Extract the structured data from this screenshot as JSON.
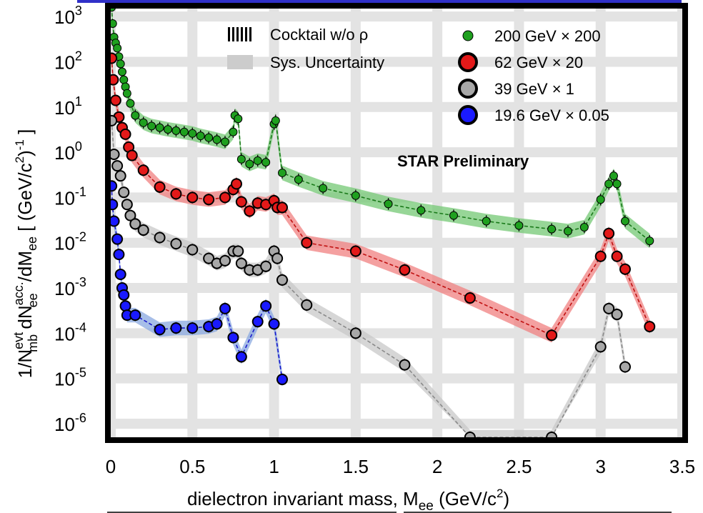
{
  "chart_data": {
    "type": "scatter",
    "xlabel": "dielectron invariant mass, M",
    "xlabel_sub": "ee",
    "xlabel_unit": "(GeV/c",
    "xlabel_unit_sup": "2",
    "xlabel_unit_end": ")",
    "ylabel": {
      "p1": "1/N",
      "p1_sup": "evt",
      "p1_sub": "mb",
      "p2": " dN",
      "p2_sup": "acc.",
      "p2_sub": "ee",
      "p3": "/dM",
      "p3_sub": "ee",
      "p4": " [ (GeV/c",
      "p4_sup": "2",
      "p4_end": ")",
      "p4_sup2": "-1",
      "p4_close": " ]"
    },
    "annotation": "STAR Preliminary",
    "xlim": [
      0,
      3.5
    ],
    "ylim": [
      5e-07,
      1500
    ],
    "y_scale": "log",
    "x_ticks": [
      0,
      0.5,
      1,
      1.5,
      2,
      2.5,
      3,
      3.5
    ],
    "x_tick_labels": [
      "0",
      "0.5",
      "1",
      "1.5",
      "2",
      "2.5",
      "3",
      "3.5"
    ],
    "y_ticks": [
      {
        "value": 1000,
        "base": "10",
        "exp": "3"
      },
      {
        "value": 100,
        "base": "10",
        "exp": "2"
      },
      {
        "value": 10,
        "base": "10",
        "exp": "1"
      },
      {
        "value": 1,
        "base": "10",
        "exp": "0"
      },
      {
        "value": 0.1,
        "base": "10",
        "exp": "-1"
      },
      {
        "value": 0.01,
        "base": "10",
        "exp": "-2"
      },
      {
        "value": 0.001,
        "base": "10",
        "exp": "-3"
      },
      {
        "value": 0.0001,
        "base": "10",
        "exp": "-4"
      },
      {
        "value": 1e-05,
        "base": "10",
        "exp": "-5"
      },
      {
        "value": 1e-06,
        "base": "10",
        "exp": "-6"
      }
    ],
    "grid": true,
    "legend_position": "top",
    "legend": {
      "cocktail": "Cocktail w/o ρ",
      "sys": "Sys. Uncertainty"
    },
    "series": [
      {
        "name": "200 GeV × 200",
        "color": "#1fa01f",
        "band_color": "#74c874",
        "line_color": "#1a7a1a",
        "marker": "small",
        "points": [
          [
            0.005,
            1600
          ],
          [
            0.012,
            700
          ],
          [
            0.02,
            350
          ],
          [
            0.03,
            260
          ],
          [
            0.04,
            200
          ],
          [
            0.05,
            130
          ],
          [
            0.06,
            90
          ],
          [
            0.07,
            60
          ],
          [
            0.08,
            40
          ],
          [
            0.09,
            28
          ],
          [
            0.1,
            20
          ],
          [
            0.12,
            12
          ],
          [
            0.15,
            6.5
          ],
          [
            0.2,
            4.5
          ],
          [
            0.25,
            3.8
          ],
          [
            0.3,
            3.5
          ],
          [
            0.35,
            3.2
          ],
          [
            0.4,
            3.0
          ],
          [
            0.45,
            2.8
          ],
          [
            0.5,
            2.6
          ],
          [
            0.55,
            2.3
          ],
          [
            0.6,
            2.1
          ],
          [
            0.65,
            1.9
          ],
          [
            0.7,
            1.7
          ],
          [
            0.75,
            2.8
          ],
          [
            0.76,
            6.5
          ],
          [
            0.78,
            5.5
          ],
          [
            0.8,
            0.7
          ],
          [
            0.85,
            0.55
          ],
          [
            0.9,
            0.65
          ],
          [
            0.95,
            0.6
          ],
          [
            1.0,
            4.2
          ],
          [
            1.01,
            5.0
          ],
          [
            1.05,
            0.35
          ],
          [
            1.15,
            0.25
          ],
          [
            1.3,
            0.16
          ],
          [
            1.5,
            0.11
          ],
          [
            1.7,
            0.072
          ],
          [
            1.9,
            0.052
          ],
          [
            2.1,
            0.04
          ],
          [
            2.3,
            0.03
          ],
          [
            2.5,
            0.024
          ],
          [
            2.7,
            0.02
          ],
          [
            2.8,
            0.018
          ],
          [
            2.9,
            0.022
          ],
          [
            3.0,
            0.09
          ],
          [
            3.05,
            0.2
          ],
          [
            3.08,
            0.3
          ],
          [
            3.1,
            0.2
          ],
          [
            3.15,
            0.03
          ],
          [
            3.3,
            0.011
          ]
        ]
      },
      {
        "name": "62 GeV × 20",
        "color": "#e31919",
        "band_color": "#f08080",
        "line_color": "#c01010",
        "marker": "large",
        "points": [
          [
            0.005,
            120
          ],
          [
            0.015,
            40
          ],
          [
            0.03,
            14
          ],
          [
            0.05,
            6
          ],
          [
            0.07,
            3.5
          ],
          [
            0.09,
            2.5
          ],
          [
            0.11,
            1.3
          ],
          [
            0.13,
            0.85
          ],
          [
            0.2,
            0.4
          ],
          [
            0.3,
            0.17
          ],
          [
            0.4,
            0.12
          ],
          [
            0.5,
            0.1
          ],
          [
            0.6,
            0.09
          ],
          [
            0.7,
            0.1
          ],
          [
            0.75,
            0.15
          ],
          [
            0.77,
            0.2
          ],
          [
            0.8,
            0.08
          ],
          [
            0.85,
            0.05
          ],
          [
            0.9,
            0.075
          ],
          [
            0.95,
            0.07
          ],
          [
            1.0,
            0.085
          ],
          [
            1.02,
            0.06
          ],
          [
            1.05,
            0.06
          ],
          [
            1.2,
            0.01
          ],
          [
            1.5,
            0.0065
          ],
          [
            1.8,
            0.0025
          ],
          [
            2.2,
            0.0006
          ],
          [
            2.7,
            9e-05
          ],
          [
            3.0,
            0.005
          ],
          [
            3.05,
            0.016
          ],
          [
            3.1,
            0.005
          ],
          [
            3.15,
            0.0026
          ],
          [
            3.3,
            0.00014
          ]
        ]
      },
      {
        "name": "39 GeV × 1",
        "color": "#a8a8a8",
        "band_color": "#c8c8c8",
        "line_color": "#8a8a8a",
        "marker": "large",
        "points": [
          [
            0.005,
            5.0
          ],
          [
            0.02,
            0.9
          ],
          [
            0.04,
            0.5
          ],
          [
            0.06,
            0.3
          ],
          [
            0.08,
            0.13
          ],
          [
            0.1,
            0.07
          ],
          [
            0.12,
            0.04
          ],
          [
            0.15,
            0.026
          ],
          [
            0.2,
            0.019
          ],
          [
            0.3,
            0.013
          ],
          [
            0.4,
            0.0095
          ],
          [
            0.5,
            0.007
          ],
          [
            0.6,
            0.0045
          ],
          [
            0.65,
            0.0035
          ],
          [
            0.7,
            0.004
          ],
          [
            0.75,
            0.0065
          ],
          [
            0.78,
            0.0065
          ],
          [
            0.8,
            0.0035
          ],
          [
            0.85,
            0.0025
          ],
          [
            0.9,
            0.0025
          ],
          [
            0.95,
            0.003
          ],
          [
            1.0,
            0.0065
          ],
          [
            1.02,
            0.0045
          ],
          [
            1.05,
            0.0015
          ],
          [
            1.2,
            0.00042
          ],
          [
            1.5,
            0.0001
          ],
          [
            1.8,
            2e-05
          ],
          [
            2.2,
            5e-07
          ],
          [
            2.7,
            5e-07
          ],
          [
            3.0,
            5e-05
          ],
          [
            3.05,
            0.00035
          ],
          [
            3.1,
            0.00026
          ],
          [
            3.15,
            1.8e-05
          ]
        ]
      },
      {
        "name": "19.6 GeV × 0.05",
        "color": "#1a1aff",
        "band_color": "#8aa8e0",
        "line_color": "#1a1acc",
        "marker": "large",
        "points": [
          [
            0.005,
            0.18
          ],
          [
            0.01,
            0.07
          ],
          [
            0.02,
            0.03
          ],
          [
            0.04,
            0.012
          ],
          [
            0.05,
            0.0055
          ],
          [
            0.06,
            0.002
          ],
          [
            0.07,
            0.001
          ],
          [
            0.08,
            0.0007
          ],
          [
            0.09,
            0.0004
          ],
          [
            0.1,
            0.00025
          ],
          [
            0.15,
            0.00025
          ],
          [
            0.3,
            0.00012
          ],
          [
            0.4,
            0.00013
          ],
          [
            0.5,
            0.00013
          ],
          [
            0.6,
            0.00014
          ],
          [
            0.65,
            0.00016
          ],
          [
            0.7,
            0.00035
          ],
          [
            0.75,
            8e-05
          ],
          [
            0.8,
            3e-05
          ],
          [
            0.9,
            0.00018
          ],
          [
            0.95,
            0.0004
          ],
          [
            1.0,
            0.00016
          ],
          [
            1.05,
            9.5e-06
          ]
        ]
      }
    ]
  }
}
